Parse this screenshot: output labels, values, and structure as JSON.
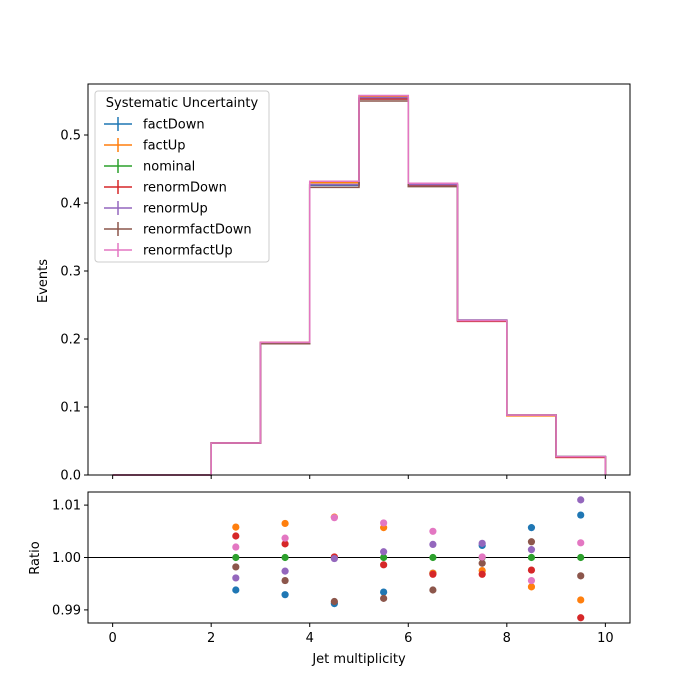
{
  "chart_data": [
    {
      "type": "step",
      "panel": "main",
      "xlabel": "",
      "ylabel": "Events",
      "xlim": [
        -0.5,
        10.5
      ],
      "ylim": [
        0,
        0.575
      ],
      "yticks": [
        0.0,
        0.1,
        0.2,
        0.3,
        0.4,
        0.5
      ],
      "ytick_labels": [
        "0.0",
        "0.1",
        "0.2",
        "0.3",
        "0.4",
        "0.5"
      ],
      "bin_edges": [
        0,
        2,
        3,
        4,
        5,
        6,
        7,
        8,
        9,
        10
      ],
      "legend": {
        "title": "Systematic Uncertainty",
        "placement": "top-left"
      },
      "series": [
        {
          "name": "factDown",
          "color": "#1f77b4",
          "values": [
            0.0,
            0.047,
            0.193,
            0.426,
            0.553,
            0.426,
            0.227,
            0.088,
            0.027
          ]
        },
        {
          "name": "factUp",
          "color": "#ff7f0e",
          "values": [
            0.0,
            0.047,
            0.195,
            0.43,
            0.557,
            0.427,
            0.227,
            0.087,
            0.026
          ]
        },
        {
          "name": "nominal",
          "color": "#2ca02c",
          "values": [
            0.0,
            0.047,
            0.194,
            0.427,
            0.554,
            0.426,
            0.227,
            0.088,
            0.027
          ]
        },
        {
          "name": "renormDown",
          "color": "#d62728",
          "values": [
            0.0,
            0.047,
            0.195,
            0.427,
            0.553,
            0.425,
            0.226,
            0.088,
            0.026
          ]
        },
        {
          "name": "renormUp",
          "color": "#9467bd",
          "values": [
            0.0,
            0.047,
            0.194,
            0.427,
            0.555,
            0.427,
            0.228,
            0.088,
            0.027
          ]
        },
        {
          "name": "renormfactDown",
          "color": "#8c564b",
          "values": [
            0.0,
            0.047,
            0.193,
            0.423,
            0.55,
            0.424,
            0.227,
            0.088,
            0.027
          ]
        },
        {
          "name": "renormfactUp",
          "color": "#e377c2",
          "values": [
            0.0,
            0.047,
            0.195,
            0.432,
            0.558,
            0.429,
            0.227,
            0.088,
            0.027
          ]
        }
      ]
    },
    {
      "type": "scatter",
      "panel": "ratio",
      "xlabel": "Jet multiplicity",
      "ylabel": "Ratio",
      "xlim": [
        -0.5,
        10.5
      ],
      "ylim": [
        0.9875,
        1.0125
      ],
      "xticks": [
        0,
        2,
        4,
        6,
        8,
        10
      ],
      "xtick_labels": [
        "0",
        "2",
        "4",
        "6",
        "8",
        "10"
      ],
      "yticks": [
        0.99,
        1.0,
        1.01
      ],
      "ytick_labels": [
        "0.99",
        "1.00",
        "1.01"
      ],
      "reference_line": 1.0,
      "x": [
        2.5,
        3.5,
        4.5,
        5.5,
        6.5,
        7.5,
        8.5,
        9.5
      ],
      "series": [
        {
          "name": "factDown",
          "color": "#1f77b4",
          "values": [
            0.9938,
            0.9929,
            0.9912,
            0.9934,
            0.997,
            1.0023,
            1.0057,
            1.0081
          ]
        },
        {
          "name": "factUp",
          "color": "#ff7f0e",
          "values": [
            1.0058,
            1.0065,
            1.0077,
            1.0057,
            0.997,
            0.9975,
            0.9944,
            0.9919
          ]
        },
        {
          "name": "nominal",
          "color": "#2ca02c",
          "values": [
            1.0,
            1.0,
            1.0,
            1.0,
            1.0,
            1.0,
            1.0,
            1.0
          ]
        },
        {
          "name": "renormDown",
          "color": "#d62728",
          "values": [
            1.0041,
            1.0026,
            1.0001,
            0.9986,
            0.9968,
            0.9968,
            0.9976,
            0.9885
          ]
        },
        {
          "name": "renormUp",
          "color": "#9467bd",
          "values": [
            0.9961,
            0.9974,
            0.9998,
            1.0011,
            1.0025,
            1.0027,
            1.0015,
            1.011
          ]
        },
        {
          "name": "renormfactDown",
          "color": "#8c564b",
          "values": [
            0.9982,
            0.9956,
            0.9916,
            0.9922,
            0.9938,
            0.9989,
            1.003,
            0.9965
          ]
        },
        {
          "name": "renormfactUp",
          "color": "#e377c2",
          "values": [
            1.002,
            1.0037,
            1.0076,
            1.0066,
            1.005,
            1.0001,
            0.9956,
            1.0028
          ]
        }
      ]
    }
  ]
}
